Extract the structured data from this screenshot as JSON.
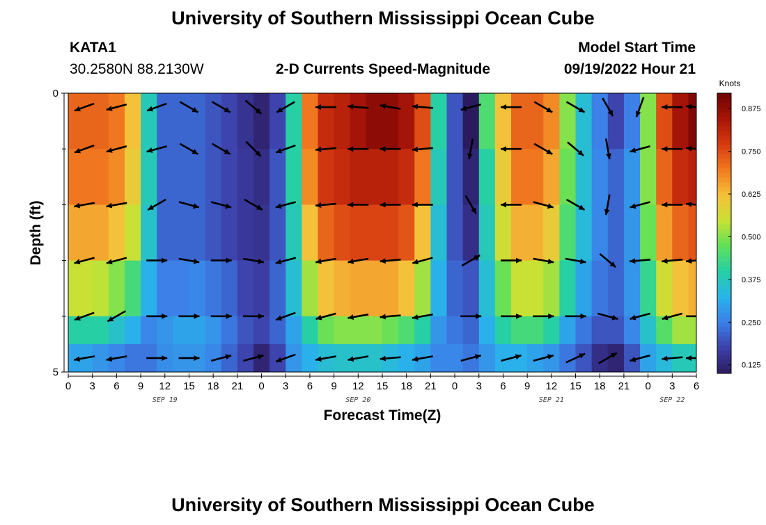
{
  "header": {
    "title": "University of Southern Mississippi Ocean Cube",
    "station": "KATA1",
    "coordinates": "30.2580N  88.2130W",
    "subtitle": "2-D Currents Speed-Magnitude",
    "model_start_label": "Model Start Time",
    "model_start_value": "09/19/2022 Hour 21"
  },
  "footer": {
    "title": "University of Southern Mississippi Ocean Cube"
  },
  "chart_data": {
    "type": "heatmap",
    "title": "2-D Currents Speed-Magnitude",
    "xlabel": "Forecast Time(Z)",
    "ylabel": "Depth (ft)",
    "x_unit": "hours from Sep 19 00Z",
    "xlim": [
      0,
      78
    ],
    "ylim": [
      0,
      5
    ],
    "x_ticks": [
      0,
      3,
      6,
      9,
      12,
      15,
      18,
      21,
      24,
      27,
      30,
      33,
      36,
      39,
      42,
      45,
      48,
      51,
      54,
      57,
      60,
      63,
      66,
      69,
      72,
      75,
      78
    ],
    "x_tick_labels": [
      "0",
      "3",
      "6",
      "9",
      "12",
      "15",
      "18",
      "21",
      "0",
      "3",
      "6",
      "9",
      "12",
      "15",
      "18",
      "21",
      "0",
      "3",
      "6",
      "9",
      "12",
      "15",
      "18",
      "21",
      "0",
      "3",
      "6"
    ],
    "y_tick_labels": [
      {
        "value": 0,
        "label": "0"
      },
      {
        "value": 5,
        "label": "5"
      }
    ],
    "y_minor_ticks": [
      1,
      2,
      3,
      4
    ],
    "date_labels": [
      {
        "x": 12,
        "label": "SEP 19"
      },
      {
        "x": 36,
        "label": "SEP 20"
      },
      {
        "x": 60,
        "label": "SEP 21"
      },
      {
        "x": 75,
        "label": "SEP 22"
      }
    ],
    "colorbar": {
      "label": "Knots",
      "min": 0.1,
      "max": 0.92,
      "ticks": [
        0.125,
        0.25,
        0.375,
        0.5,
        0.625,
        0.75,
        0.875
      ],
      "tick_labels": [
        "0.125",
        "0.250",
        "0.375",
        "0.500",
        "0.625",
        "0.750",
        "0.875"
      ],
      "colors": [
        "#2b1b5e",
        "#3d3fa8",
        "#3c7fe8",
        "#29b3ea",
        "#26cfa6",
        "#5fe05a",
        "#c7e234",
        "#f5c13a",
        "#f17a20",
        "#d63b10",
        "#a81508",
        "#6e0303"
      ]
    },
    "depth_levels": [
      0.25,
      1.0,
      2.0,
      3.0,
      4.0,
      4.75
    ],
    "time_points": [
      0,
      2,
      4,
      6,
      8,
      10,
      12,
      14,
      16,
      18,
      20,
      22,
      24,
      26,
      28,
      30,
      32,
      34,
      36,
      38,
      40,
      42,
      44,
      46,
      48,
      50,
      52,
      54,
      56,
      58,
      60,
      62,
      64,
      66,
      68,
      70,
      72,
      74,
      76,
      78
    ],
    "speed": [
      [
        0.72,
        0.72,
        0.72,
        0.7,
        0.62,
        0.38,
        0.22,
        0.22,
        0.22,
        0.2,
        0.18,
        0.15,
        0.12,
        0.18,
        0.4,
        0.7,
        0.8,
        0.82,
        0.85,
        0.88,
        0.88,
        0.85,
        0.75,
        0.4,
        0.2,
        0.05,
        0.45,
        0.62,
        0.72,
        0.72,
        0.68,
        0.5,
        0.35,
        0.25,
        0.18,
        0.25,
        0.5,
        0.75,
        0.85,
        0.9
      ],
      [
        0.7,
        0.7,
        0.7,
        0.68,
        0.6,
        0.38,
        0.22,
        0.22,
        0.22,
        0.2,
        0.18,
        0.16,
        0.14,
        0.2,
        0.4,
        0.68,
        0.78,
        0.8,
        0.82,
        0.82,
        0.82,
        0.8,
        0.7,
        0.38,
        0.2,
        0.12,
        0.4,
        0.6,
        0.7,
        0.7,
        0.65,
        0.48,
        0.35,
        0.26,
        0.22,
        0.28,
        0.5,
        0.72,
        0.8,
        0.82
      ],
      [
        0.65,
        0.65,
        0.65,
        0.62,
        0.55,
        0.36,
        0.22,
        0.22,
        0.22,
        0.2,
        0.18,
        0.16,
        0.15,
        0.2,
        0.38,
        0.62,
        0.72,
        0.75,
        0.76,
        0.76,
        0.76,
        0.74,
        0.62,
        0.35,
        0.2,
        0.14,
        0.38,
        0.56,
        0.64,
        0.64,
        0.6,
        0.45,
        0.34,
        0.26,
        0.22,
        0.28,
        0.48,
        0.66,
        0.72,
        0.74
      ],
      [
        0.55,
        0.55,
        0.54,
        0.5,
        0.44,
        0.32,
        0.25,
        0.25,
        0.26,
        0.24,
        0.22,
        0.18,
        0.17,
        0.22,
        0.35,
        0.52,
        0.62,
        0.64,
        0.65,
        0.65,
        0.65,
        0.62,
        0.52,
        0.32,
        0.22,
        0.2,
        0.35,
        0.48,
        0.55,
        0.55,
        0.52,
        0.4,
        0.3,
        0.24,
        0.22,
        0.28,
        0.42,
        0.56,
        0.62,
        0.64
      ],
      [
        0.4,
        0.4,
        0.4,
        0.36,
        0.32,
        0.26,
        0.28,
        0.3,
        0.3,
        0.28,
        0.24,
        0.2,
        0.18,
        0.22,
        0.3,
        0.4,
        0.48,
        0.5,
        0.5,
        0.5,
        0.48,
        0.45,
        0.4,
        0.28,
        0.24,
        0.22,
        0.32,
        0.4,
        0.44,
        0.44,
        0.4,
        0.3,
        0.24,
        0.2,
        0.2,
        0.26,
        0.36,
        0.46,
        0.52,
        0.52
      ],
      [
        0.3,
        0.3,
        0.28,
        0.26,
        0.24,
        0.24,
        0.27,
        0.28,
        0.28,
        0.26,
        0.22,
        0.18,
        0.12,
        0.18,
        0.28,
        0.32,
        0.35,
        0.36,
        0.36,
        0.36,
        0.34,
        0.32,
        0.3,
        0.26,
        0.26,
        0.24,
        0.28,
        0.32,
        0.32,
        0.3,
        0.28,
        0.24,
        0.2,
        0.14,
        0.12,
        0.2,
        0.3,
        0.34,
        0.38,
        0.38
      ]
    ],
    "vector_times": [
      2,
      6,
      11,
      15,
      19,
      23,
      27,
      32,
      36,
      40,
      44,
      50,
      55,
      59,
      63,
      67,
      71,
      75,
      78
    ],
    "vector_direction_deg": [
      [
        200,
        195,
        200,
        330,
        330,
        320,
        210,
        180,
        175,
        170,
        175,
        195,
        180,
        330,
        330,
        300,
        250,
        180,
        175
      ],
      [
        200,
        195,
        195,
        330,
        330,
        315,
        200,
        185,
        180,
        180,
        185,
        260,
        180,
        330,
        320,
        280,
        195,
        180,
        175
      ],
      [
        190,
        190,
        210,
        345,
        345,
        330,
        195,
        185,
        180,
        180,
        180,
        300,
        180,
        345,
        330,
        260,
        195,
        180,
        175
      ],
      [
        195,
        195,
        0,
        350,
        0,
        350,
        195,
        190,
        190,
        185,
        195,
        30,
        0,
        350,
        350,
        320,
        185,
        185,
        185
      ],
      [
        200,
        210,
        0,
        0,
        0,
        0,
        200,
        195,
        190,
        185,
        190,
        0,
        0,
        0,
        0,
        345,
        195,
        195,
        0
      ],
      [
        190,
        190,
        0,
        0,
        15,
        15,
        200,
        190,
        190,
        185,
        190,
        15,
        15,
        15,
        25,
        30,
        195,
        185,
        180
      ]
    ]
  }
}
